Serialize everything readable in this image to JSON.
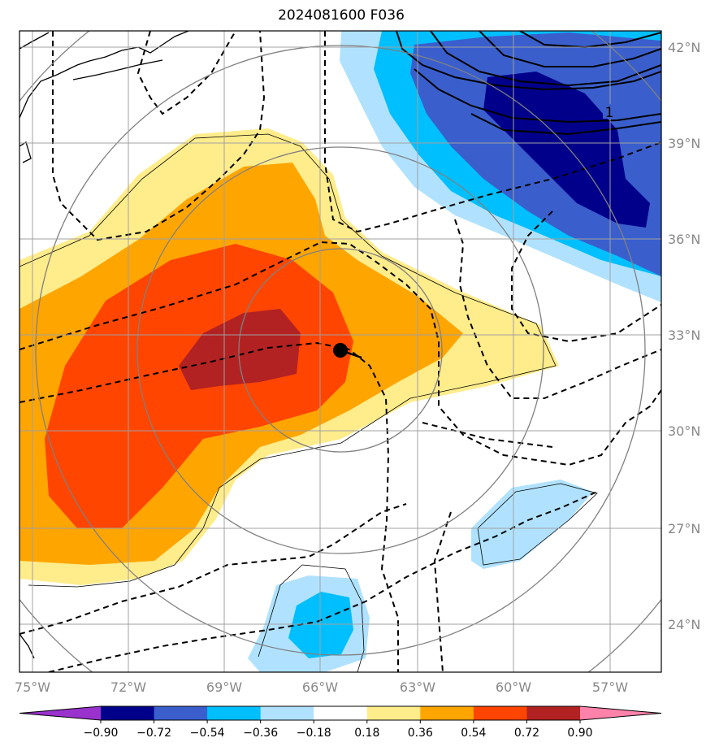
{
  "title": "2024081600 F036",
  "map": {
    "lon_labels": [
      "75°W",
      "72°W",
      "69°W",
      "66°W",
      "63°W",
      "60°W",
      "57°W"
    ],
    "lat_labels": [
      "42°N",
      "39°N",
      "36°N",
      "33°N",
      "30°N",
      "27°N",
      "24°N"
    ],
    "contour_label": "1",
    "storm_marker": {
      "lon": -65.7,
      "lat": 32.5
    }
  },
  "colorbar": {
    "levels": [
      "−0.90",
      "−0.72",
      "−0.54",
      "−0.36",
      "−0.18",
      "0.18",
      "0.36",
      "0.54",
      "0.72",
      "0.90"
    ],
    "colors": [
      "#9a32cd",
      "#00008b",
      "#3a5fcd",
      "#00bfff",
      "#b0e2ff",
      "#ffffff",
      "#ffec8b",
      "#ffa500",
      "#ff4500",
      "#b22222",
      "#ff82ab"
    ],
    "extend": "both"
  }
}
